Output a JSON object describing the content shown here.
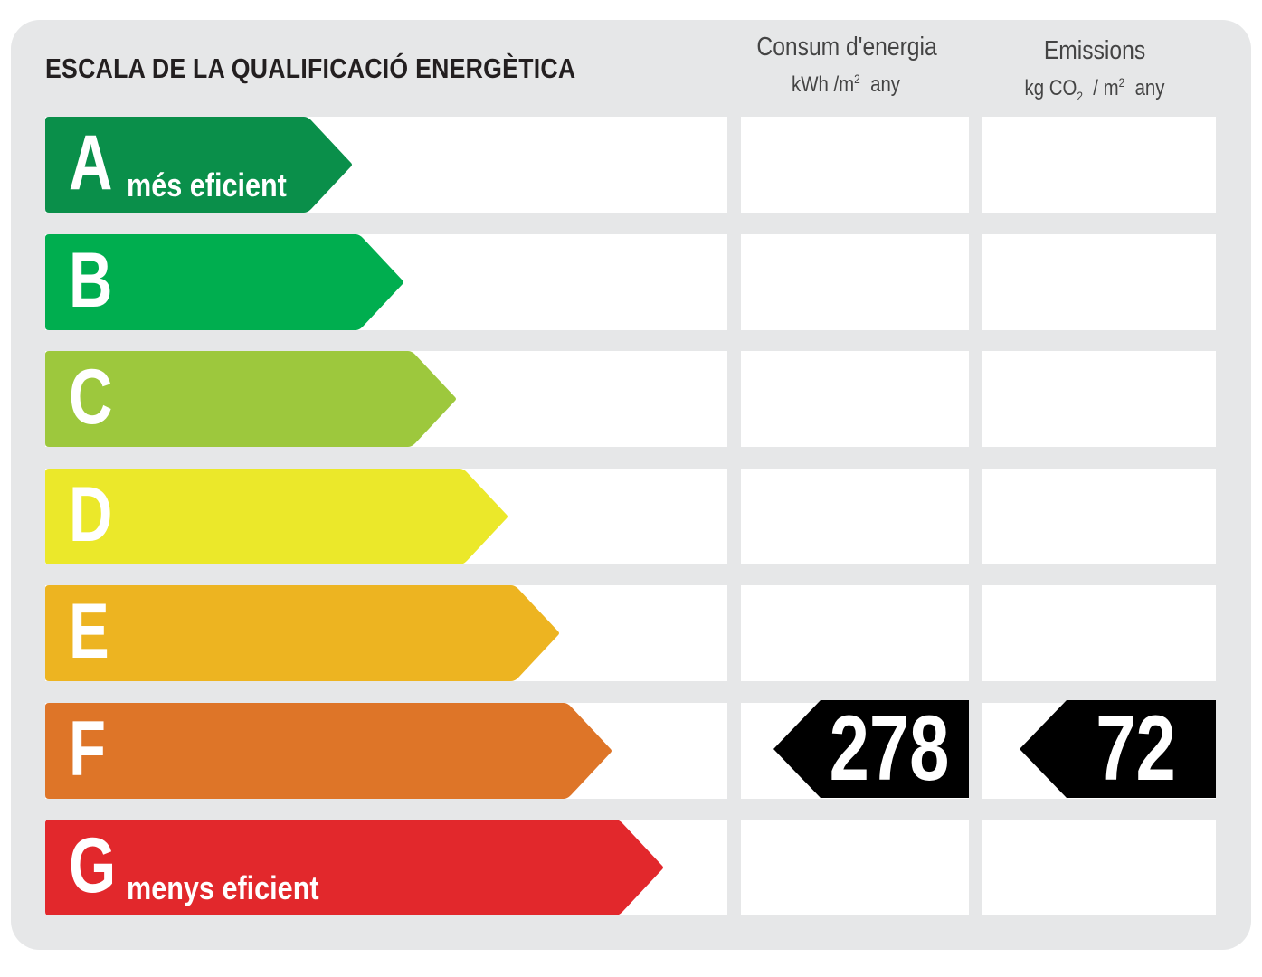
{
  "title": "ESCALA DE LA QUALIFICACIÓ ENERGÈTICA",
  "columns": {
    "consumption": {
      "heading": "Consum d'energia",
      "unit_prefix": "kWh /m",
      "unit_sup": "2",
      "unit_suffix": "any"
    },
    "emissions": {
      "heading": "Emissions",
      "unit_prefix": "kg CO",
      "unit_sub": "2",
      "unit_mid": "/ m",
      "unit_sup": "2",
      "unit_suffix": "any"
    }
  },
  "ratings": [
    {
      "letter": "A",
      "label": "més eficient",
      "color": "#0a8f4a"
    },
    {
      "letter": "B",
      "label": "",
      "color": "#00ae4f"
    },
    {
      "letter": "C",
      "label": "",
      "color": "#9dc83d"
    },
    {
      "letter": "D",
      "label": "",
      "color": "#ebe82a"
    },
    {
      "letter": "E",
      "label": "",
      "color": "#edb421"
    },
    {
      "letter": "F",
      "label": "",
      "color": "#de7528"
    },
    {
      "letter": "G",
      "label": "menys eficient",
      "color": "#e2282c"
    }
  ],
  "result": {
    "rating": "F",
    "consumption_value": "278",
    "emissions_value": "72",
    "marker_color": "#000000"
  }
}
